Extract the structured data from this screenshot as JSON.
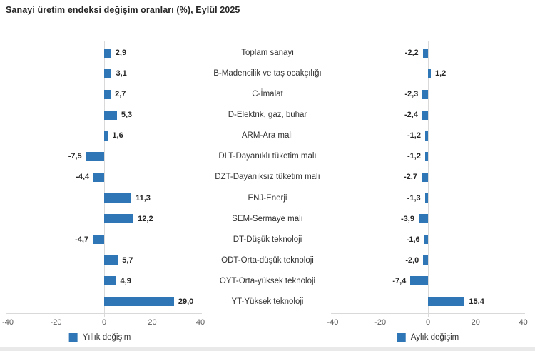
{
  "title": "Sanayi üretim endeksi değişim oranları (%), Eylül 2025",
  "colors": {
    "bar": "#2e76b5",
    "grid": "#d9d9d9",
    "tick_text": "#595959",
    "category_text": "#333333",
    "value_text": "#262626",
    "footer_strip": "#e9e9e9"
  },
  "chart_data": {
    "type": "bar",
    "orientation": "horizontal",
    "title": "Sanayi üretim endeksi değişim oranları (%), Eylül 2025",
    "categories": [
      "Toplam sanayi",
      "B-Madencilik ve taş ocakçılığı",
      "C-İmalat",
      "D-Elektrik, gaz, buhar",
      "ARM-Ara malı",
      "DLT-Dayanıklı tüketim malı",
      "DZT-Dayanıksız tüketim malı",
      "ENJ-Enerji",
      "SEM-Sermaye malı",
      "DT-Düşük teknoloji",
      "ODT-Orta-düşük teknoloji",
      "OYT-Orta-yüksek teknoloji",
      "YT-Yüksek teknoloji"
    ],
    "series": [
      {
        "name": "Yıllık değişim",
        "values": [
          2.9,
          3.1,
          2.7,
          5.3,
          1.6,
          -7.5,
          -4.4,
          11.3,
          12.2,
          -4.7,
          5.7,
          4.9,
          29.0
        ]
      },
      {
        "name": "Aylık değişim",
        "values": [
          -2.2,
          1.2,
          -2.3,
          -2.4,
          -1.2,
          -1.2,
          -2.7,
          -1.3,
          -3.9,
          -1.6,
          -2.0,
          -7.4,
          15.4
        ]
      }
    ],
    "xlim": [
      -40,
      40
    ],
    "xticks": [
      -40,
      -20,
      0,
      20,
      40
    ],
    "grid": "zero-line-only",
    "legend_position": "bottom",
    "value_label_format": "decimal-comma-1"
  }
}
